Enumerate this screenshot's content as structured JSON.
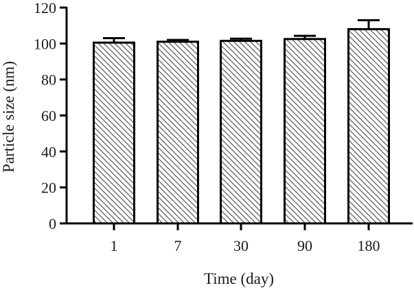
{
  "chart_data": {
    "type": "bar",
    "categories": [
      "1",
      "7",
      "30",
      "90",
      "180"
    ],
    "values": [
      100.5,
      101,
      101.5,
      102.5,
      108
    ],
    "errors": [
      2.5,
      1,
      1.2,
      1.8,
      5
    ],
    "xlabel": "Time (day)",
    "ylabel": "Particle size (nm)",
    "ylim": [
      0,
      120
    ],
    "yticks": [
      0,
      20,
      40,
      60,
      80,
      100,
      120
    ],
    "grid": false,
    "bar_fill": "hatched",
    "colors": {
      "bar_stroke": "#000000",
      "hatch": "#555555",
      "bar_background": "#ffffff"
    }
  }
}
